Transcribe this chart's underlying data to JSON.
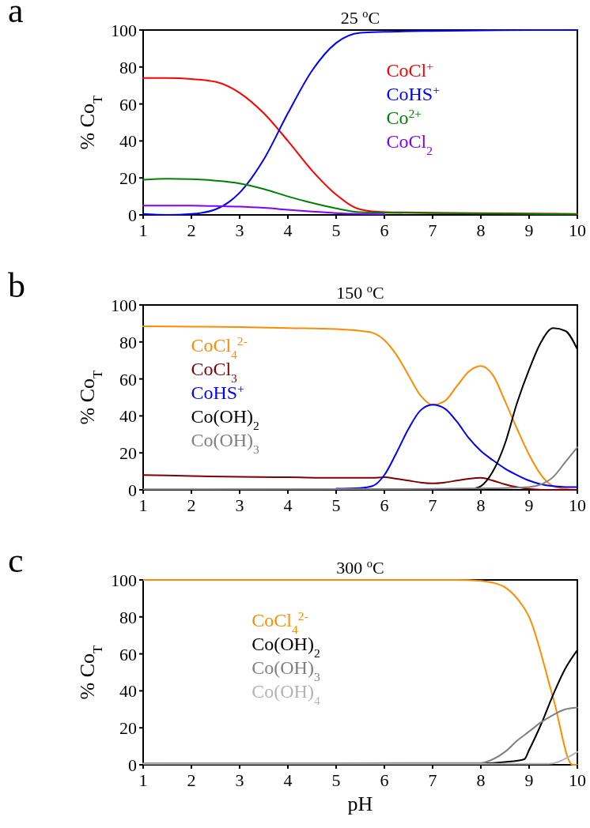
{
  "chart_data": [
    {
      "type": "line",
      "title": "25 $^{o}$C",
      "ylabel": "% Co$_{T}$",
      "annotations": [
        "a"
      ],
      "xlim": [
        1,
        10
      ],
      "xticks": [
        1,
        2,
        3,
        4,
        5,
        6,
        7,
        8,
        9,
        10
      ],
      "ylim": [
        0,
        100
      ],
      "yticks": [
        0,
        20,
        40,
        60,
        80,
        100
      ],
      "legend": "right",
      "grid": false,
      "series": [
        {
          "name": "CoCl$^{+}$",
          "color": "#ff0000",
          "x": [
            1,
            1.5,
            2,
            2.5,
            3,
            3.5,
            4,
            4.5,
            5,
            5.5,
            6,
            7,
            8,
            9,
            10
          ],
          "values": [
            74,
            74,
            73.5,
            72,
            66,
            55,
            40,
            24,
            11,
            3,
            1.5,
            1.2,
            1,
            0.8,
            0.5
          ]
        },
        {
          "name": "CoHS$^{+}$",
          "color": "#0000ff",
          "x": [
            1,
            1.5,
            2,
            2.5,
            3,
            3.5,
            4,
            4.5,
            5,
            5.5,
            6,
            7,
            8,
            9,
            10
          ],
          "values": [
            0.5,
            0,
            0.5,
            3,
            12,
            30,
            55,
            78,
            93,
            98.5,
            99,
            99.5,
            99.8,
            100,
            100
          ]
        },
        {
          "name": "Co$^{2+}$",
          "color": "#008000",
          "x": [
            1,
            1.5,
            2,
            2.5,
            3,
            3.5,
            4,
            4.5,
            5,
            5.5,
            6,
            7,
            8,
            9,
            10
          ],
          "values": [
            19,
            19.5,
            19.3,
            18.5,
            17,
            14,
            10,
            6.5,
            3.5,
            1.5,
            1.2,
            1,
            0.8,
            0.5,
            0.3
          ]
        },
        {
          "name": "CoCl$_{2}$",
          "color": "#8000ff",
          "x": [
            1,
            1.5,
            2,
            2.5,
            3,
            3.5,
            4,
            4.5,
            5,
            5.5,
            6
          ],
          "values": [
            5,
            5,
            5,
            4.8,
            4.5,
            3.8,
            2.8,
            1.8,
            1,
            0.5,
            0.3
          ]
        }
      ]
    },
    {
      "type": "line",
      "title": "150 $^{o}$C",
      "ylabel": "% Co$_{T}$",
      "annotations": [
        "b"
      ],
      "xlim": [
        1,
        10
      ],
      "xticks": [
        1,
        2,
        3,
        4,
        5,
        6,
        7,
        8,
        9,
        10
      ],
      "ylim": [
        0,
        100
      ],
      "yticks": [
        0,
        20,
        40,
        60,
        80,
        100
      ],
      "legend": "left",
      "grid": false,
      "series": [
        {
          "name": "CoCl$_{4}$$^{2-}$",
          "color": "#ff8c00",
          "x": [
            1,
            2,
            3,
            4,
            5,
            5.5,
            5.75,
            6,
            6.25,
            6.5,
            6.75,
            7,
            7.25,
            7.5,
            7.75,
            8,
            8.25,
            8.5,
            8.75,
            9,
            9.25,
            9.5,
            9.75,
            10
          ],
          "values": [
            88.5,
            88.3,
            88,
            87.5,
            87,
            86,
            85,
            81,
            73,
            62,
            51,
            46,
            48,
            56,
            64,
            67,
            62,
            48,
            33,
            19,
            8,
            2,
            0.5,
            0
          ]
        },
        {
          "name": "CoCl$_{3}$",
          "color": "#800000",
          "x": [
            1,
            2,
            3,
            4,
            5,
            5.5,
            5.75,
            6,
            6.25,
            6.5,
            6.75,
            7,
            7.25,
            7.5,
            7.75,
            8,
            8.25,
            8.5,
            8.75,
            9,
            9.25,
            9.5,
            9.75,
            10
          ],
          "values": [
            8,
            7.5,
            7,
            6.8,
            6.5,
            6.5,
            6.5,
            6.8,
            6,
            5,
            4,
            3.5,
            4,
            5,
            6,
            6.5,
            5,
            3,
            1.5,
            0.5,
            0,
            0,
            0,
            0
          ]
        },
        {
          "name": "CoHS$^{+}$",
          "color": "#0000ff",
          "x": [
            5,
            5.5,
            5.75,
            6,
            6.25,
            6.5,
            6.75,
            7,
            7.25,
            7.5,
            7.75,
            8,
            8.25,
            8.5,
            8.75,
            9,
            9.25,
            9.5,
            9.75,
            10
          ],
          "values": [
            0.6,
            1,
            2,
            8,
            20,
            33,
            43,
            46,
            44,
            37,
            28,
            21,
            16,
            11.5,
            8,
            5,
            3,
            2,
            1.5,
            1.5
          ]
        },
        {
          "name": "Co(OH)$_{2}$",
          "color": "#000000",
          "x": [
            7.9,
            8,
            8.25,
            8.5,
            8.75,
            9,
            9.25,
            9.5,
            9.75,
            10
          ],
          "values": [
            1,
            2,
            10,
            25,
            47,
            65,
            80,
            87.5,
            86,
            76
          ]
        },
        {
          "name": "Co(OH)$_{3}$",
          "color": "#808080",
          "x": [
            1,
            7,
            8,
            8.5,
            9,
            9.25,
            9.5,
            9.75,
            10
          ],
          "values": [
            0.3,
            0.5,
            0.8,
            1,
            1.5,
            3,
            7,
            15,
            23
          ]
        }
      ]
    },
    {
      "type": "line",
      "title": "300 $^{o}$C",
      "xlabel": "pH",
      "ylabel": "% Co$_{T}$",
      "annotations": [
        "c"
      ],
      "xlim": [
        1,
        10
      ],
      "xticks": [
        1,
        2,
        3,
        4,
        5,
        6,
        7,
        8,
        9,
        10
      ],
      "ylim": [
        0,
        100
      ],
      "yticks": [
        0,
        20,
        40,
        60,
        80,
        100
      ],
      "legend": "center",
      "grid": false,
      "series": [
        {
          "name": "CoCl$_{4}$$^{2-}$",
          "color": "#ff8c00",
          "x": [
            1,
            7,
            7.5,
            8,
            8.25,
            8.5,
            8.75,
            9,
            9.5,
            9.9,
            10
          ],
          "values": [
            100,
            100,
            100,
            99.5,
            98.5,
            96,
            90,
            80,
            36,
            0,
            0
          ]
        },
        {
          "name": "Co(OH)$_{2}$",
          "color": "#000000",
          "x": [
            1,
            8,
            8.5,
            8.9,
            9,
            9.25,
            9.5,
            9.75,
            10
          ],
          "values": [
            0.5,
            0.8,
            1.5,
            3,
            8,
            22,
            38,
            52,
            62
          ]
        },
        {
          "name": "Co(OH)$_{3}$",
          "color": "#808080",
          "x": [
            1,
            8,
            8.25,
            8.5,
            8.75,
            9,
            9.25,
            9.5,
            9.75,
            10
          ],
          "values": [
            0.8,
            1,
            3,
            7,
            13,
            18,
            23,
            27,
            30,
            31
          ]
        },
        {
          "name": "Co(OH)$_{4}$",
          "color": "#b4b4b4",
          "x": [
            1,
            9.4,
            9.6,
            9.8,
            10
          ],
          "values": [
            0.5,
            0.5,
            1.5,
            4,
            7
          ]
        }
      ]
    }
  ]
}
